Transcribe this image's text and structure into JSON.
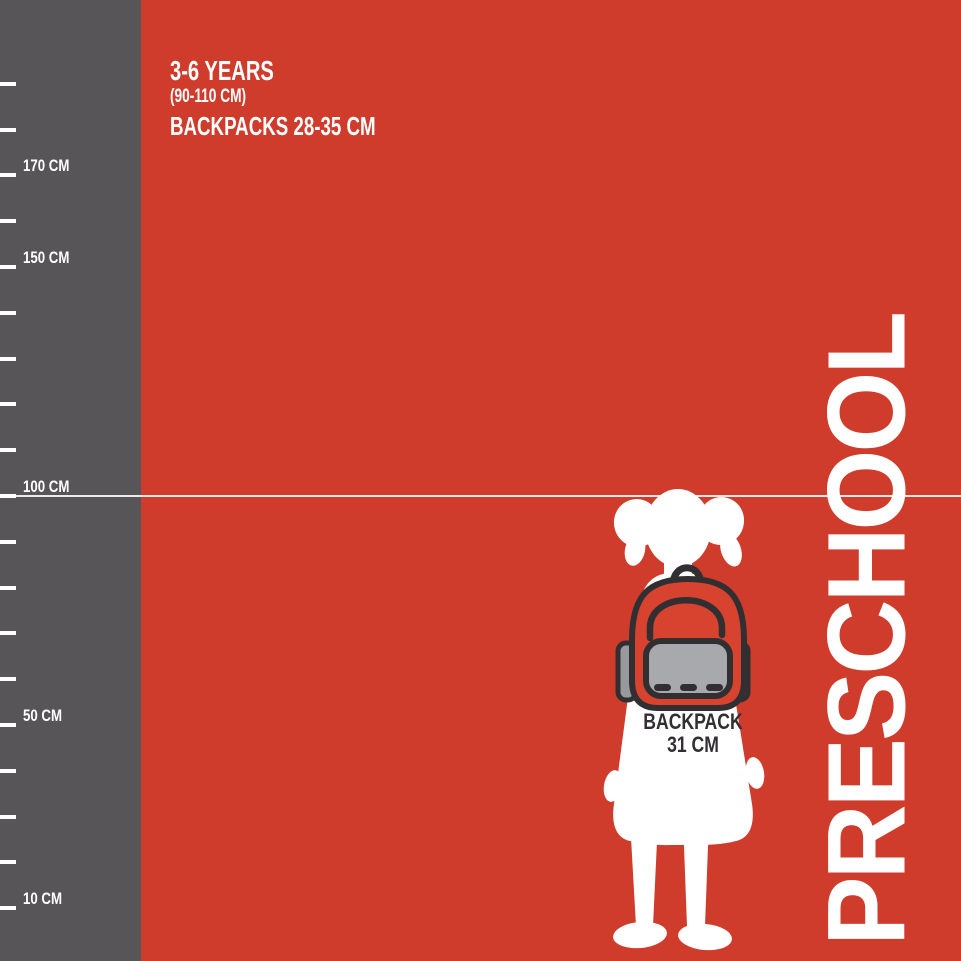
{
  "colors": {
    "red": "#d03c2c",
    "backpack_red": "#d8432f",
    "ruler_gray": "#575558",
    "silhouette_white": "#ffffff",
    "outline_charcoal": "#322f33",
    "pocket_gray": "#a8a9ac",
    "strap_gray": "#98999c"
  },
  "header": {
    "line1": "3-6 YEARS",
    "line2": "(90-110 CM)",
    "line3": "BACKPACKS 28-35 CM"
  },
  "ruler": {
    "unit": "CM",
    "min_cm": 10,
    "max_cm": 190,
    "step_cm": 10,
    "labels": {
      "170": "170 CM",
      "150": "150 CM",
      "100": "100 CM",
      "50": "50 CM",
      "10": "10 CM"
    }
  },
  "reference_line": {
    "at_cm": 100
  },
  "figure": {
    "type": "preschool girl silhouette with backpack",
    "backpack_label_line1": "BACKPACK",
    "backpack_label_line2": "31 CM"
  },
  "side_label": "PRESCHOOL"
}
